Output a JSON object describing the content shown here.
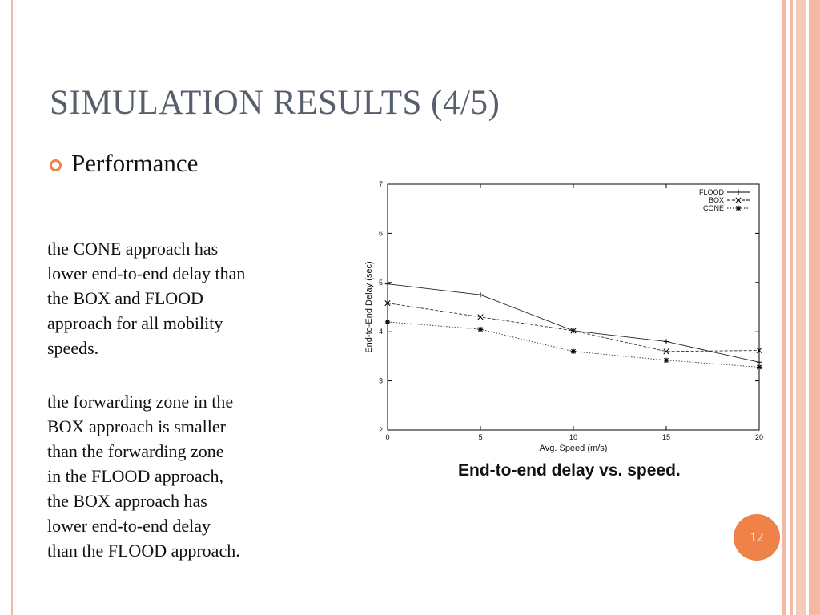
{
  "slide": {
    "title": "SIMULATION RESULTS (4/5)",
    "bullet": "Performance",
    "paragraph1": "the CONE approach has\nlower end-to-end delay than\nthe BOX and FLOOD\napproach for all mobility\nspeeds.",
    "paragraph2": "the forwarding zone in the\nBOX approach is smaller\nthan the forwarding zone\nin the FLOOD approach,\nthe BOX approach has\nlower end-to-end delay\nthan the FLOOD approach.",
    "caption": "End-to-end delay vs. speed.",
    "page_number": "12"
  },
  "theme": {
    "accent": "#ee8249",
    "title_color": "#575f6d",
    "stripe_color": "#f4b8a3"
  },
  "icons": {
    "bullet": "ring-bullet-icon"
  },
  "chart_data": {
    "type": "line",
    "x": [
      0,
      5,
      10,
      15,
      20
    ],
    "xlim": [
      0,
      20
    ],
    "ylim": [
      2,
      7
    ],
    "xticks": [
      "0",
      "5",
      "10",
      "15",
      "20"
    ],
    "yticks": [
      "2",
      "3",
      "4",
      "5",
      "6",
      "7"
    ],
    "xlabel": "Avg. Speed (m/s)",
    "ylabel": "End-to-End Delay (sec)",
    "grid": false,
    "legend_position": "top-right",
    "series": [
      {
        "name": "FLOOD",
        "values": [
          4.97,
          4.75,
          4.02,
          3.8,
          3.38
        ],
        "marker": "plus",
        "dash": "solid"
      },
      {
        "name": "BOX",
        "values": [
          4.58,
          4.3,
          4.02,
          3.6,
          3.62
        ],
        "marker": "cross",
        "dash": "dashed"
      },
      {
        "name": "CONE",
        "values": [
          4.2,
          4.05,
          3.6,
          3.42,
          3.28
        ],
        "marker": "star",
        "dash": "dotted"
      }
    ]
  }
}
